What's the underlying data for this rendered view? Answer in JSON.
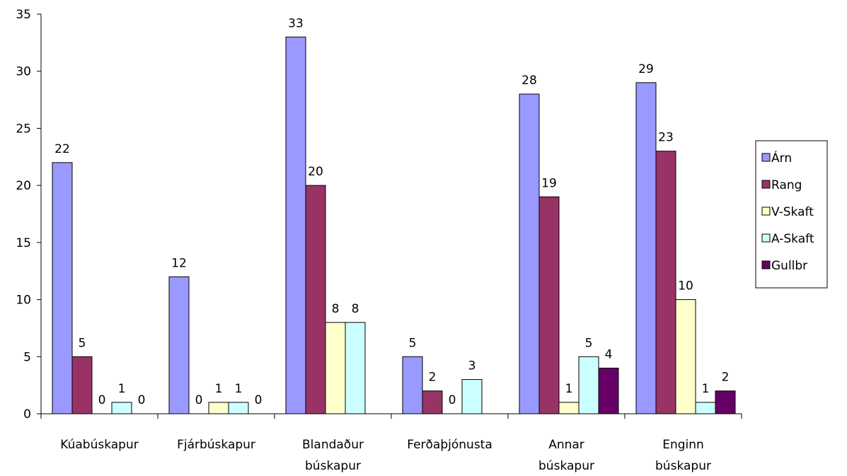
{
  "chart_data": {
    "type": "bar",
    "title": "",
    "xlabel": "",
    "ylabel": "",
    "ylim": [
      0,
      35
    ],
    "yticks": [
      "0",
      "5",
      "10",
      "15",
      "20",
      "25",
      "30",
      "35"
    ],
    "categories": [
      [
        "Kúabúskapur"
      ],
      [
        "Fjárbúskapur"
      ],
      [
        "Blandaður",
        "búskapur"
      ],
      [
        "Ferðaþjónusta"
      ],
      [
        "Annar",
        "búskapur"
      ],
      [
        "Enginn",
        "búskapur"
      ]
    ],
    "series": [
      {
        "name": "Árn",
        "color": "#9999ff",
        "values": [
          22,
          12,
          33,
          5,
          28,
          29
        ]
      },
      {
        "name": "Rang",
        "color": "#993366",
        "values": [
          5,
          0,
          20,
          2,
          19,
          23
        ]
      },
      {
        "name": "V-Skaft",
        "color": "#ffffcc",
        "values": [
          0,
          1,
          8,
          0,
          1,
          10
        ]
      },
      {
        "name": "A-Skaft",
        "color": "#ccffff",
        "values": [
          1,
          1,
          8,
          3,
          5,
          1
        ]
      },
      {
        "name": "Gullbr",
        "color": "#660066",
        "values": [
          0,
          0,
          null,
          null,
          4,
          2
        ]
      }
    ],
    "legend_position": "right",
    "grid": false
  }
}
